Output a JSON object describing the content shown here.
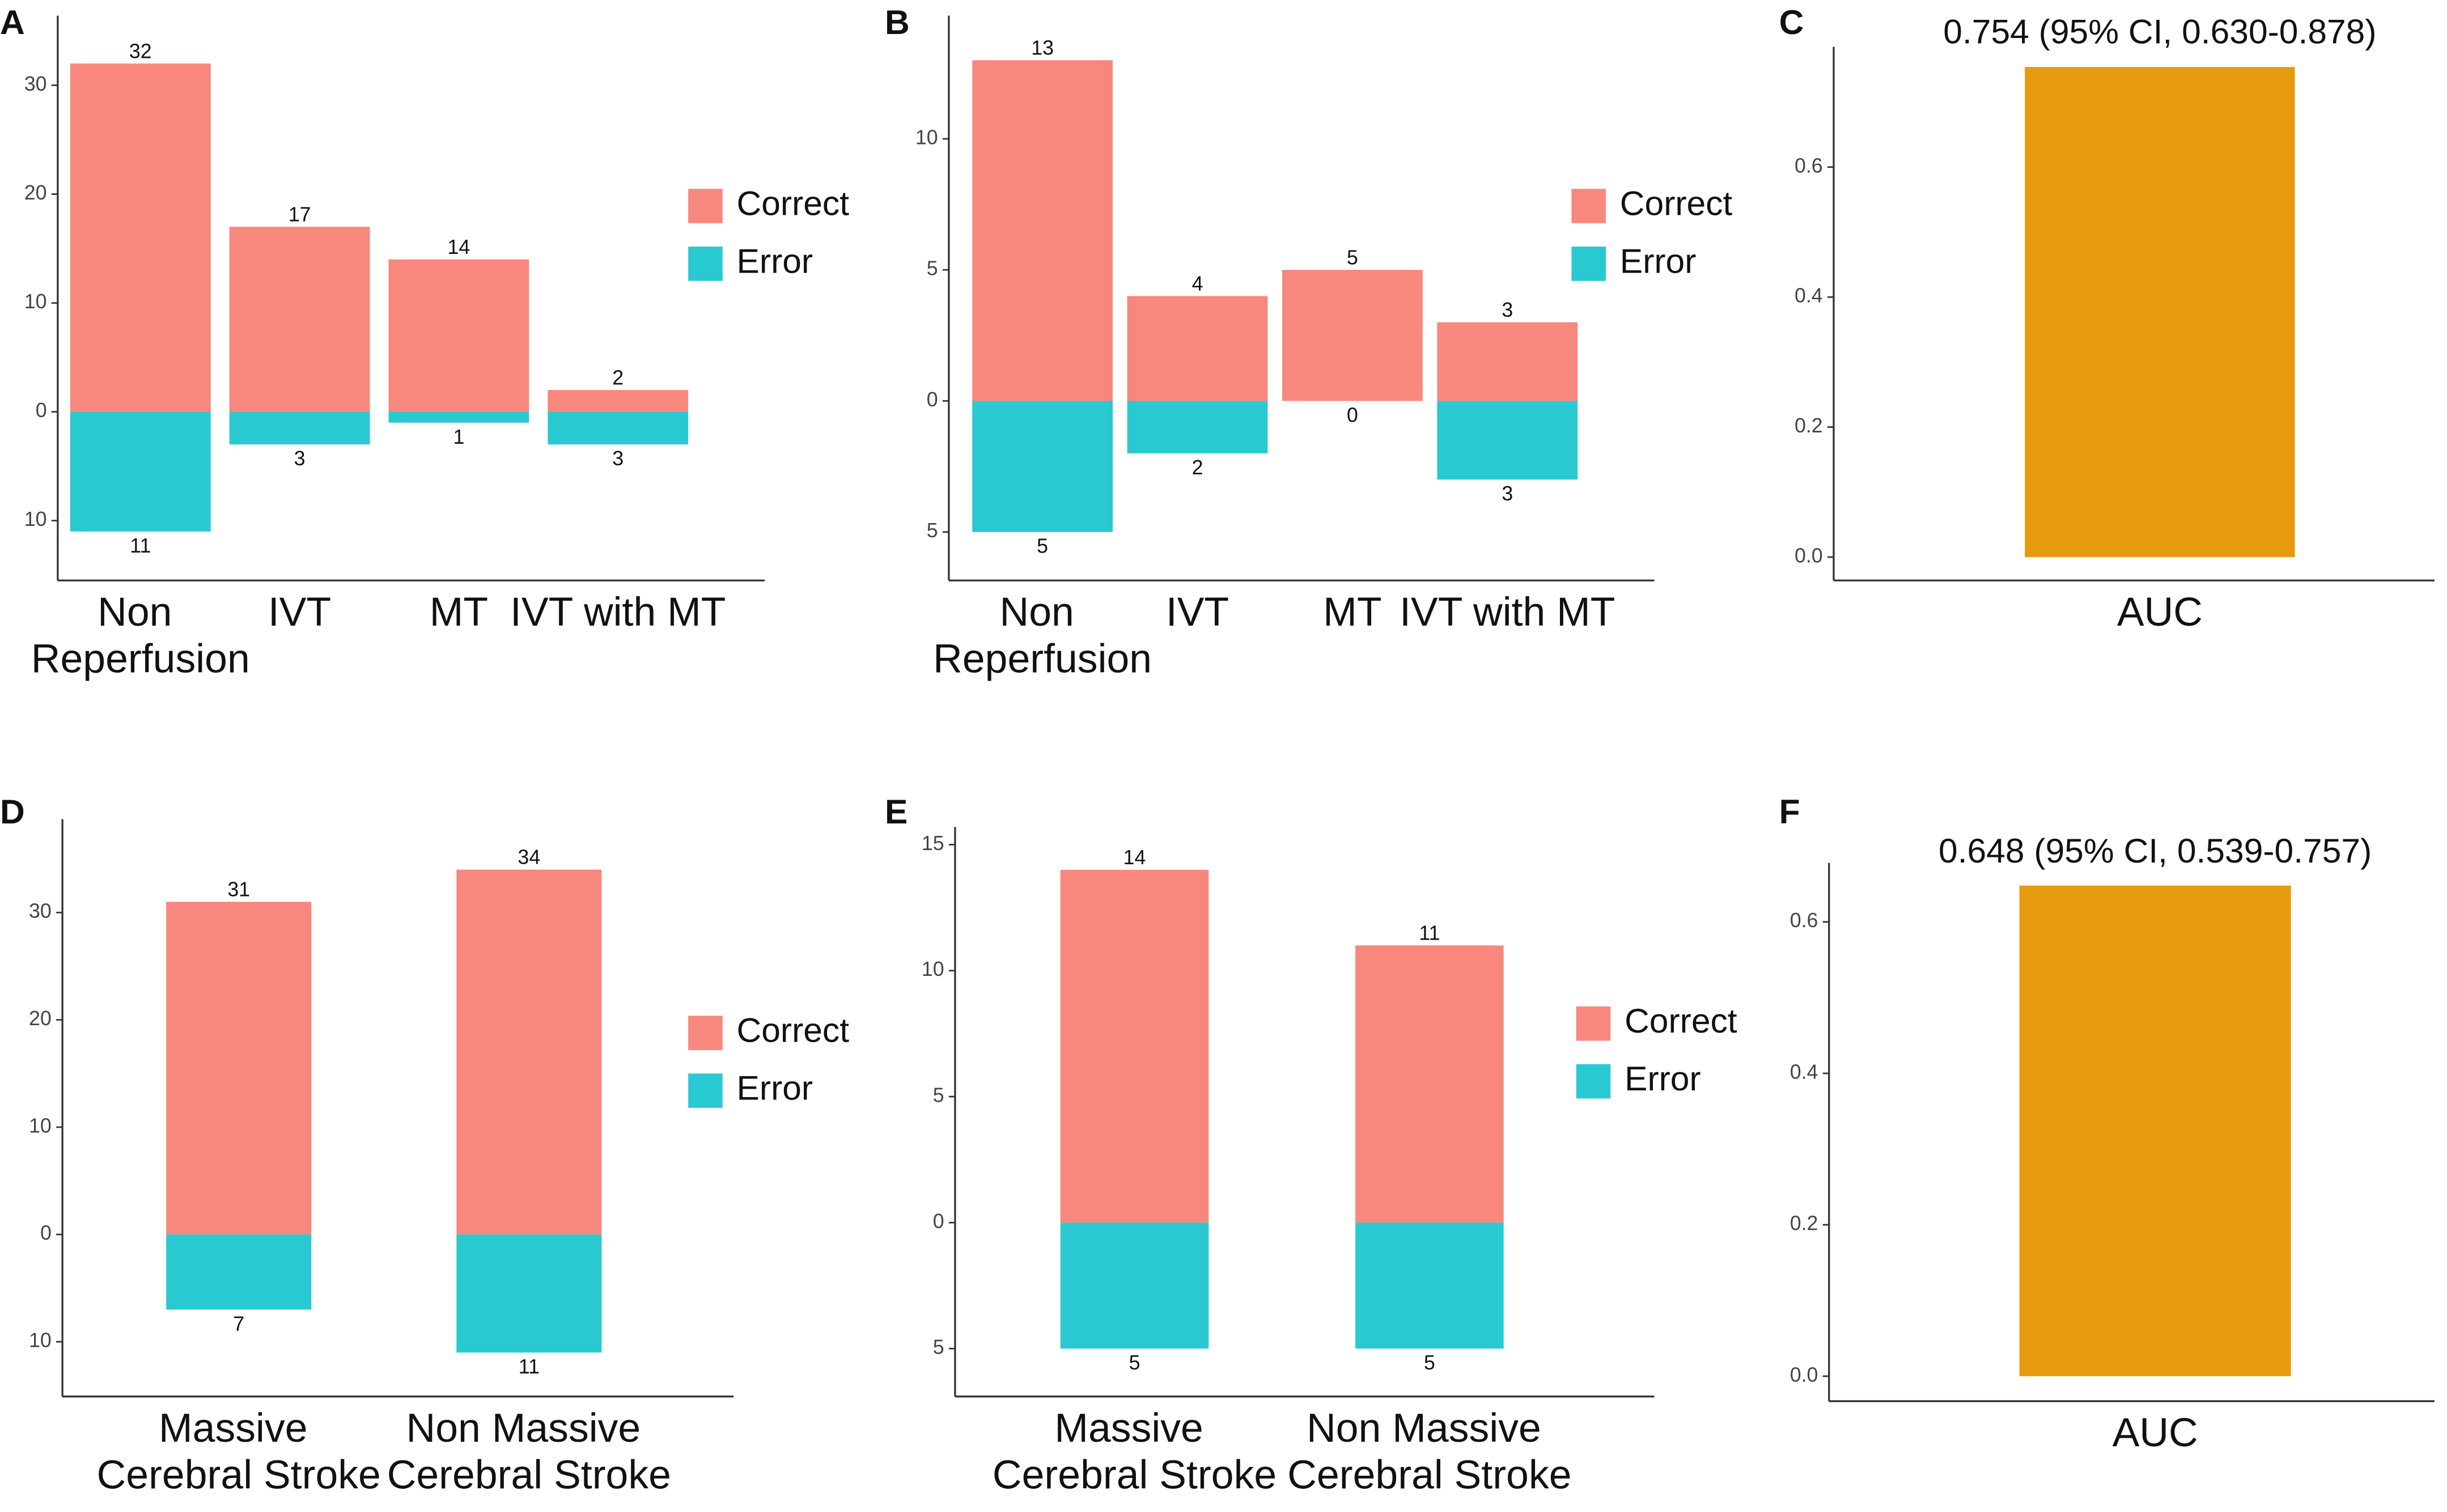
{
  "chart_data": [
    {
      "type": "diverging_bar",
      "label": "A",
      "categories": [
        "Non\nReperfusion",
        "IVT",
        "MT",
        "IVT with MT"
      ],
      "series": [
        {
          "name": "Correct",
          "color": "#f8877d",
          "values": [
            32,
            17,
            14,
            2
          ]
        },
        {
          "name": "Error",
          "color": "#29c9d1",
          "values": [
            -11,
            -3,
            -1,
            -3
          ],
          "value_labels": [
            "11",
            "3",
            "1",
            "3"
          ]
        }
      ],
      "ylim": [
        -15.5,
        36.4
      ],
      "yticks": [
        {
          "value": -10,
          "label": "10"
        },
        0,
        10,
        20,
        30
      ],
      "legend": "right"
    },
    {
      "type": "diverging_bar",
      "label": "B",
      "categories": [
        "Non\nReperfusion",
        "IVT",
        "MT",
        "IVT with MT"
      ],
      "series": [
        {
          "name": "Correct",
          "color": "#f8877d",
          "values": [
            13,
            4,
            5,
            3
          ]
        },
        {
          "name": "Error",
          "color": "#29c9d1",
          "values": [
            -5,
            -2,
            0,
            -3
          ],
          "value_labels": [
            "5",
            "2",
            "0",
            "3"
          ]
        }
      ],
      "ylim": [
        -6.85,
        14.7
      ],
      "yticks": [
        {
          "value": -5,
          "label": "5"
        },
        0,
        5,
        10
      ],
      "legend": "right"
    },
    {
      "type": "bar",
      "label": "C",
      "annotation": "0.754 (95% CI, 0.630-0.878)",
      "categories": [
        "AUC"
      ],
      "values": [
        0.754
      ],
      "color": "#e69a0f",
      "ylim": [
        -0.036,
        0.785
      ],
      "yticks": [
        {
          "value": 0,
          "label": "0.0"
        },
        0.2,
        0.4,
        0.6
      ]
    },
    {
      "type": "diverging_bar",
      "label": "D",
      "categories": [
        "Massive\nCerebral Stroke",
        "Non Massive\nCerebral Stroke"
      ],
      "series": [
        {
          "name": "Correct",
          "color": "#f8877d",
          "values": [
            31,
            34
          ]
        },
        {
          "name": "Error",
          "color": "#29c9d1",
          "values": [
            -7,
            -11
          ],
          "value_labels": [
            "7",
            "11"
          ]
        }
      ],
      "ylim": [
        -15.1,
        38.7
      ],
      "yticks": [
        {
          "value": -10,
          "label": "10"
        },
        0,
        10,
        20,
        30
      ],
      "legend": "right"
    },
    {
      "type": "diverging_bar",
      "label": "E",
      "categories": [
        "Massive\nCerebral Stroke",
        "Non Massive\nCerebral Stroke"
      ],
      "series": [
        {
          "name": "Correct",
          "color": "#f8877d",
          "values": [
            14,
            11
          ]
        },
        {
          "name": "Error",
          "color": "#29c9d1",
          "values": [
            -5,
            -5
          ],
          "value_labels": [
            "5",
            "5"
          ]
        }
      ],
      "ylim": [
        -6.9,
        15.7
      ],
      "yticks": [
        {
          "value": -5,
          "label": "5"
        },
        0,
        5,
        10,
        15
      ],
      "legend": "right"
    },
    {
      "type": "bar",
      "label": "F",
      "annotation": "0.648 (95% CI, 0.539-0.757)",
      "categories": [
        "AUC"
      ],
      "values": [
        0.648
      ],
      "color": "#e69a0f",
      "ylim": [
        -0.033,
        0.678
      ],
      "yticks": [
        {
          "value": 0,
          "label": "0.0"
        },
        0.2,
        0.4,
        0.6
      ]
    }
  ]
}
